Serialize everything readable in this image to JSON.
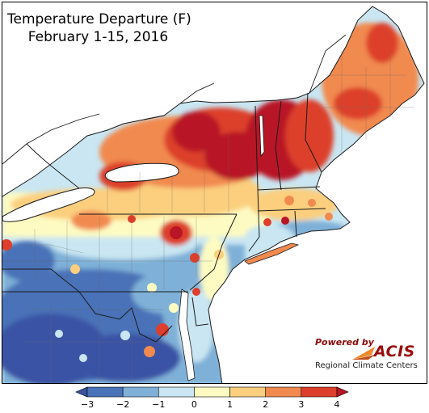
{
  "title": {
    "line1": "Temperature Departure (F)",
    "line2": "February 1-15, 2016"
  },
  "legend": {
    "tick_labels": [
      "−3",
      "−2",
      "−1",
      "0",
      "1",
      "2",
      "3",
      "4"
    ],
    "bins": [
      {
        "range": "below -3",
        "color": "#3a52a4"
      },
      {
        "range": "-3 to -2",
        "color": "#4a72b8"
      },
      {
        "range": "-2 to -1",
        "color": "#7fb1d8"
      },
      {
        "range": "-1 to 0",
        "color": "#c9e6f2"
      },
      {
        "range": "0 to 1",
        "color": "#fdfbc2"
      },
      {
        "range": "1 to 2",
        "color": "#fbcf7e"
      },
      {
        "range": "2 to 3",
        "color": "#f18a4f"
      },
      {
        "range": "3 to 4",
        "color": "#dd3f2c"
      },
      {
        "range": "above 4",
        "color": "#b81526"
      }
    ]
  },
  "logo": {
    "powered_by": "Powered by",
    "name": "ACIS",
    "org": "Regional Climate Centers"
  },
  "map": {
    "region": "Northeast United States",
    "colors": {
      "lake_water": "#ffffff",
      "ocean": "#ffffff",
      "boundary": "#1a1a1a"
    }
  }
}
